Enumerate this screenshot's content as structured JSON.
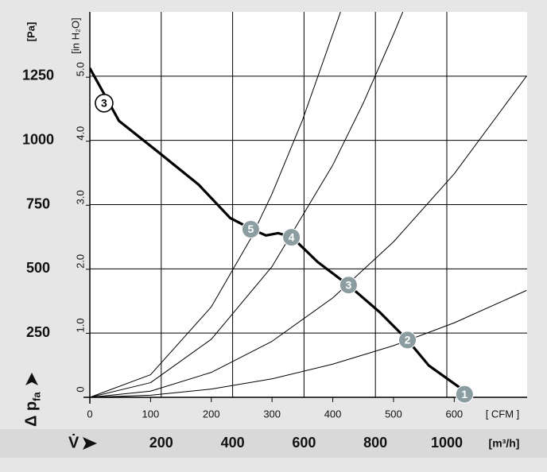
{
  "chart_data": {
    "type": "line",
    "y_unit": "[Pa]",
    "y2_unit": "[in H₂O]",
    "y_label": "Δ p",
    "y_label_sub": "fa",
    "x_label": "V̇",
    "x_unit": "[m³/h]",
    "x2_unit": "[ CFM ]",
    "xlim": [
      0,
      1225
    ],
    "xticks": [
      200,
      400,
      600,
      800,
      1000
    ],
    "x2lim": [
      0,
      720
    ],
    "x2ticks": [
      0,
      100,
      200,
      300,
      400,
      500,
      600
    ],
    "ylim": [
      0,
      1500
    ],
    "yticks": [
      250,
      500,
      750,
      1000,
      1250
    ],
    "y2lim": [
      0,
      6.02
    ],
    "y2ticks": [
      0,
      {
        "value": 1,
        "label": "1.0"
      },
      {
        "value": 2,
        "label": "2.0"
      },
      {
        "value": 3,
        "label": "3.0"
      },
      {
        "value": 4,
        "label": "4.0"
      },
      {
        "value": 5,
        "label": "5.0"
      }
    ],
    "grid": true,
    "series": [
      {
        "axis": "x2",
        "color": "#000000",
        "width": 3.2,
        "x": [
          0,
          48,
          114,
          179,
          231,
          267,
          290,
          310,
          333,
          375,
          427,
          477,
          523,
          558,
          613
        ],
        "values": [
          1281,
          1076,
          952,
          828,
          698,
          654,
          630,
          639,
          623,
          527,
          434,
          332,
          223,
          124,
          31
        ]
      },
      {
        "axis": "x2",
        "color": "#000000",
        "width": 1,
        "x": [
          0,
          100,
          200,
          300,
          400,
          500,
          600,
          719
        ],
        "values": [
          0,
          8,
          32,
          72,
          129,
          201,
          290,
          416
        ]
      },
      {
        "axis": "x2",
        "color": "#000000",
        "width": 1,
        "x": [
          0,
          100,
          200,
          300,
          400,
          500,
          600,
          719
        ],
        "values": [
          0,
          24,
          97,
          218,
          387,
          605,
          870,
          1250
        ]
      },
      {
        "axis": "x2",
        "color": "#000000",
        "width": 1,
        "x": [
          0,
          100,
          200,
          300,
          400,
          450,
          500,
          516
        ],
        "values": [
          0,
          57,
          226,
          509,
          904,
          1144,
          1413,
          1504
        ]
      },
      {
        "axis": "x2",
        "color": "#000000",
        "width": 1,
        "x": [
          0,
          100,
          200,
          265,
          300,
          350,
          413
        ],
        "values": [
          0,
          88,
          352,
          618,
          792,
          1078,
          1501
        ]
      }
    ],
    "points": [
      {
        "label": "3",
        "x": 23.5,
        "y": 1145,
        "fill": "#ffffff",
        "text_color": "#000000"
      },
      {
        "label": "5",
        "x": 265,
        "y": 654,
        "fill": "#8c9da1",
        "text_color": "#ffffff"
      },
      {
        "label": "4",
        "x": 332,
        "y": 623,
        "fill": "#8c9da1",
        "text_color": "#ffffff"
      },
      {
        "label": "3",
        "x": 426,
        "y": 437,
        "fill": "#8c9da1",
        "text_color": "#ffffff"
      },
      {
        "label": "2",
        "x": 523,
        "y": 223,
        "fill": "#8c9da1",
        "text_color": "#ffffff"
      },
      {
        "label": "1",
        "x": 617,
        "y": 12,
        "fill": "#8c9da1",
        "text_color": "#ffffff"
      }
    ]
  }
}
